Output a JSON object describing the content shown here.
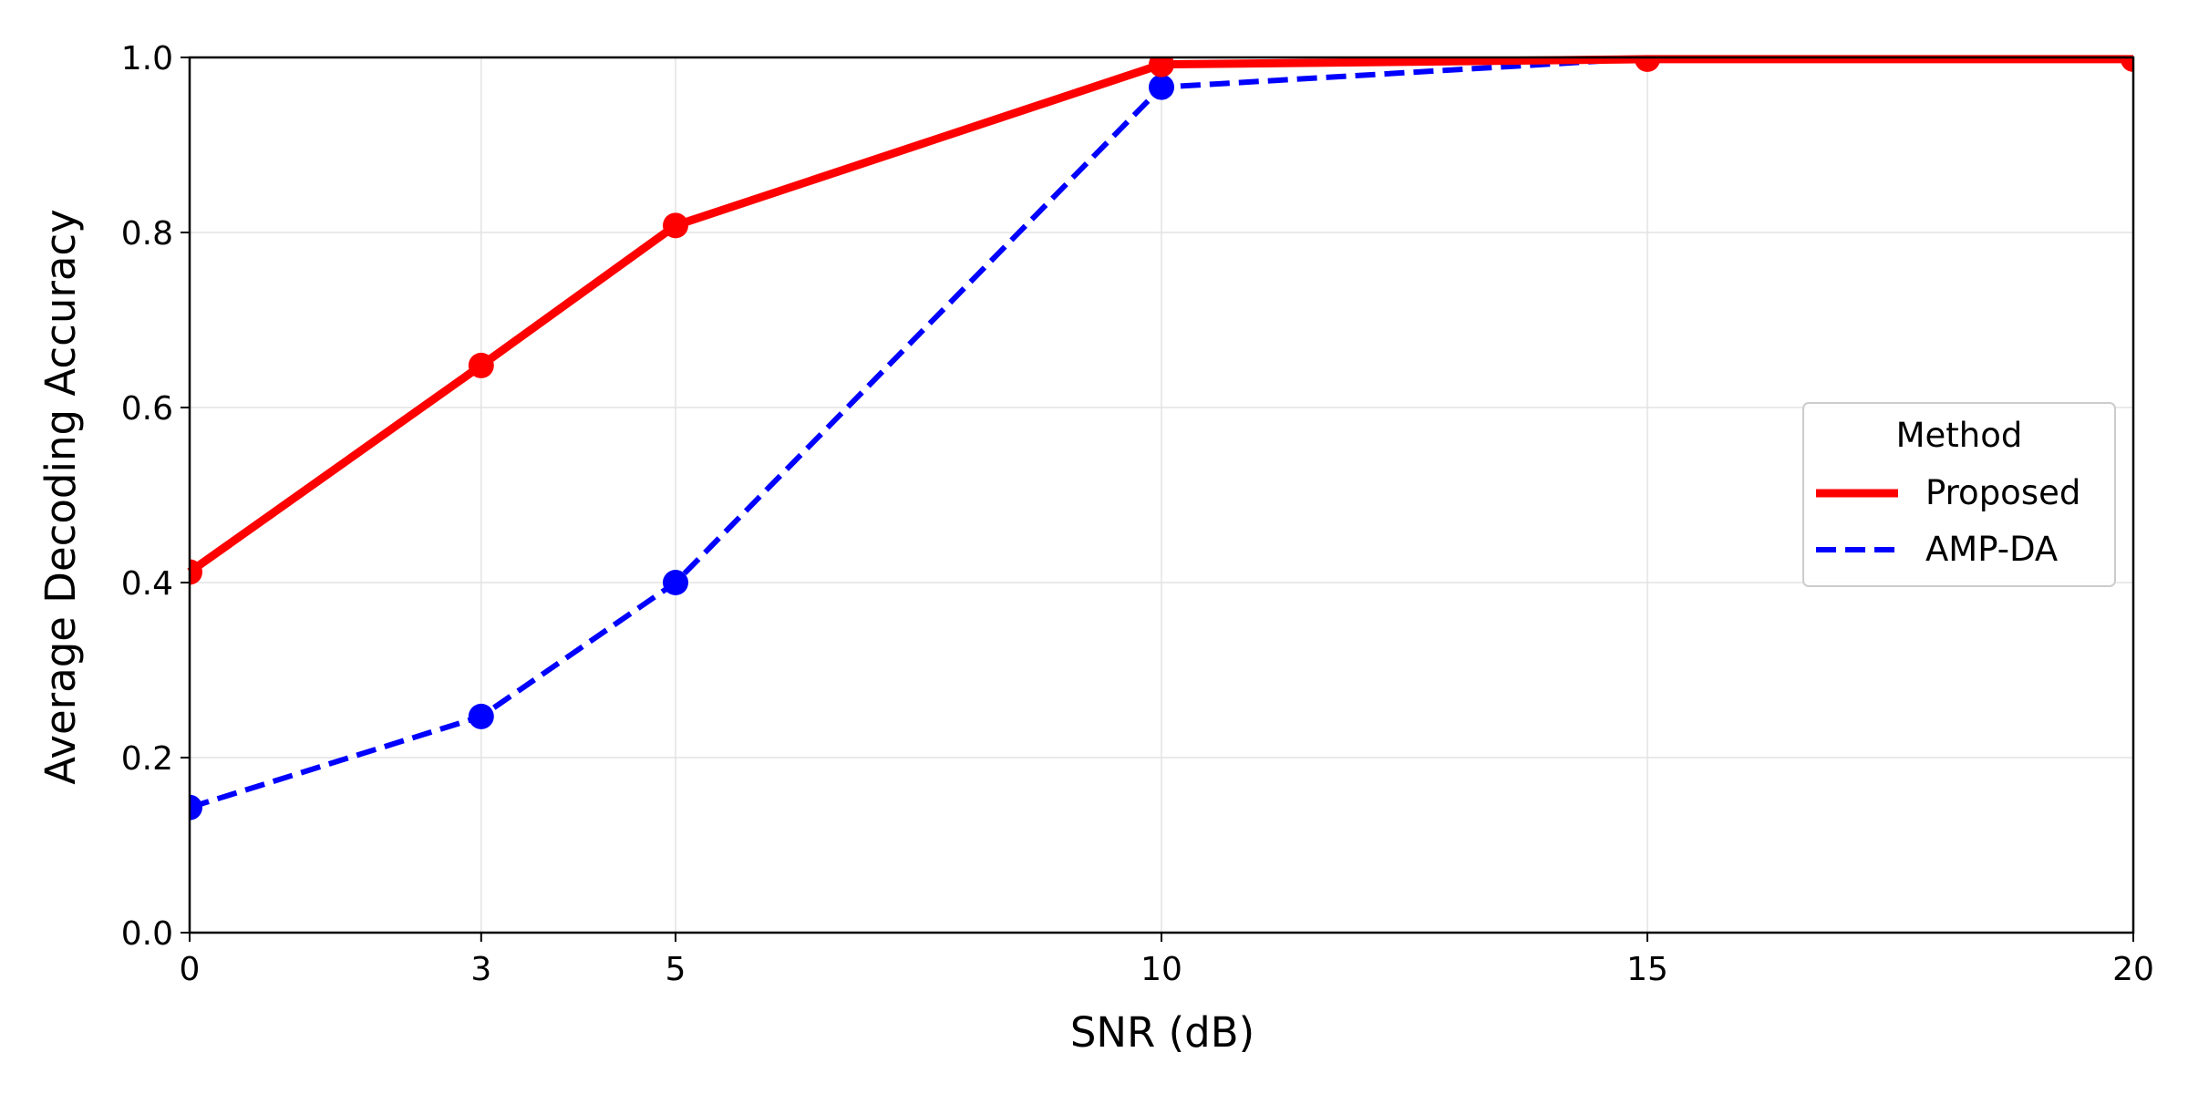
{
  "chart_data": {
    "type": "line",
    "xlabel": "SNR (dB)",
    "ylabel": "Average Decoding Accuracy",
    "x": [
      0,
      3,
      5,
      10,
      15,
      20
    ],
    "xticks": [
      "0",
      "3",
      "5",
      "10",
      "15",
      "20"
    ],
    "yticks": [
      "0.0",
      "0.2",
      "0.4",
      "0.6",
      "0.8",
      "1.0"
    ],
    "xlim": [
      0,
      20
    ],
    "ylim": [
      0,
      1
    ],
    "grid": true,
    "legend": {
      "title": "Method",
      "position": "center-right"
    },
    "series": [
      {
        "name": "Proposed",
        "values": [
          0.412,
          0.648,
          0.808,
          0.992,
          0.998,
          0.998
        ],
        "color": "#ff0000",
        "style": "solid"
      },
      {
        "name": "AMP-DA",
        "values": [
          0.143,
          0.247,
          0.4,
          0.966,
          0.999,
          0.999
        ],
        "color": "#0000ff",
        "style": "dashed"
      }
    ]
  }
}
